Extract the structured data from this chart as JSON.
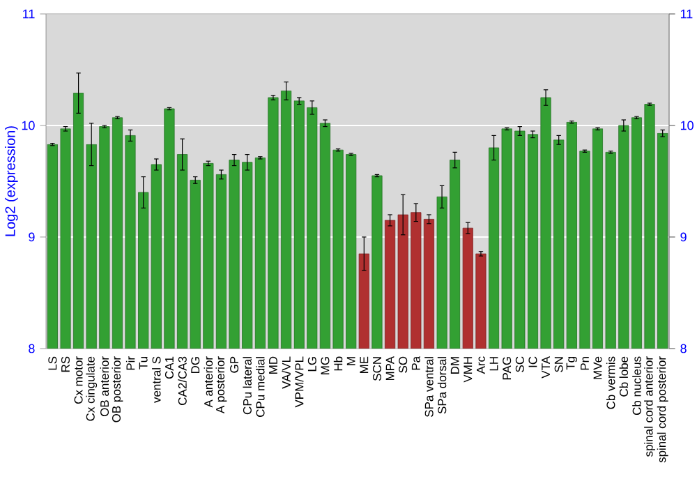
{
  "chart_data": {
    "type": "bar",
    "ylabel": "Log2 (expression)",
    "categories": [
      "LS",
      "RS",
      "Cx motor",
      "Cx cingulate",
      "OB anterior",
      "OB posterior",
      "Pir",
      "Tu",
      "ventral S",
      "CA1",
      "CA2/CA3",
      "DG",
      "A anterior",
      "A posterior",
      "GP",
      "CPu lateral",
      "CPu medial",
      "MD",
      "VA/VL",
      "VPM/VPL",
      "LG",
      "MG",
      "Hb",
      "M",
      "ME",
      "SCN",
      "MPA",
      "SO",
      "Pa",
      "SPa ventral",
      "SPa dorsal",
      "DM",
      "VMH",
      "Arc",
      "LH",
      "PAG",
      "SC",
      "IC",
      "VTA",
      "SN",
      "Tg",
      "Pn",
      "MVe",
      "Cb vermis",
      "Cb lobe",
      "Cb nucleus",
      "spinal cord anterior",
      "spinal cord posterior"
    ],
    "values": [
      9.83,
      9.97,
      10.29,
      9.83,
      9.99,
      10.07,
      9.91,
      9.4,
      9.65,
      10.15,
      9.74,
      9.51,
      9.66,
      9.56,
      9.69,
      9.67,
      9.71,
      10.25,
      10.31,
      10.22,
      10.16,
      10.02,
      9.78,
      9.74,
      8.85,
      9.55,
      9.15,
      9.2,
      9.22,
      9.16,
      9.36,
      9.69,
      9.08,
      8.85,
      9.8,
      9.97,
      9.95,
      9.92,
      10.25,
      9.87,
      10.03,
      9.77,
      9.97,
      9.76,
      10.0,
      10.07,
      10.19,
      9.93
    ],
    "errors": [
      0.01,
      0.02,
      0.18,
      0.19,
      0.01,
      0.01,
      0.05,
      0.14,
      0.05,
      0.01,
      0.14,
      0.03,
      0.02,
      0.04,
      0.05,
      0.07,
      0.01,
      0.02,
      0.08,
      0.03,
      0.06,
      0.03,
      0.01,
      0.01,
      0.15,
      0.01,
      0.05,
      0.18,
      0.08,
      0.04,
      0.1,
      0.07,
      0.05,
      0.02,
      0.11,
      0.01,
      0.04,
      0.03,
      0.07,
      0.04,
      0.01,
      0.01,
      0.01,
      0.01,
      0.05,
      0.01,
      0.01,
      0.03
    ],
    "colors": [
      "#33a033",
      "#33a033",
      "#33a033",
      "#33a033",
      "#33a033",
      "#33a033",
      "#33a033",
      "#33a033",
      "#33a033",
      "#33a033",
      "#33a033",
      "#33a033",
      "#33a033",
      "#33a033",
      "#33a033",
      "#33a033",
      "#33a033",
      "#33a033",
      "#33a033",
      "#33a033",
      "#33a033",
      "#33a033",
      "#33a033",
      "#33a033",
      "#b03030",
      "#33a033",
      "#b03030",
      "#b03030",
      "#b03030",
      "#b03030",
      "#33a033",
      "#33a033",
      "#b03030",
      "#b03030",
      "#33a033",
      "#33a033",
      "#33a033",
      "#33a033",
      "#33a033",
      "#33a033",
      "#33a033",
      "#33a033",
      "#33a033",
      "#33a033",
      "#33a033",
      "#33a033",
      "#33a033",
      "#33a033"
    ],
    "ylim": [
      8,
      11
    ],
    "yticks": [
      8,
      9,
      10,
      11
    ],
    "y2lim": [
      8,
      11
    ],
    "y2ticks": [
      8,
      9,
      10,
      11
    ],
    "grid": "y"
  }
}
